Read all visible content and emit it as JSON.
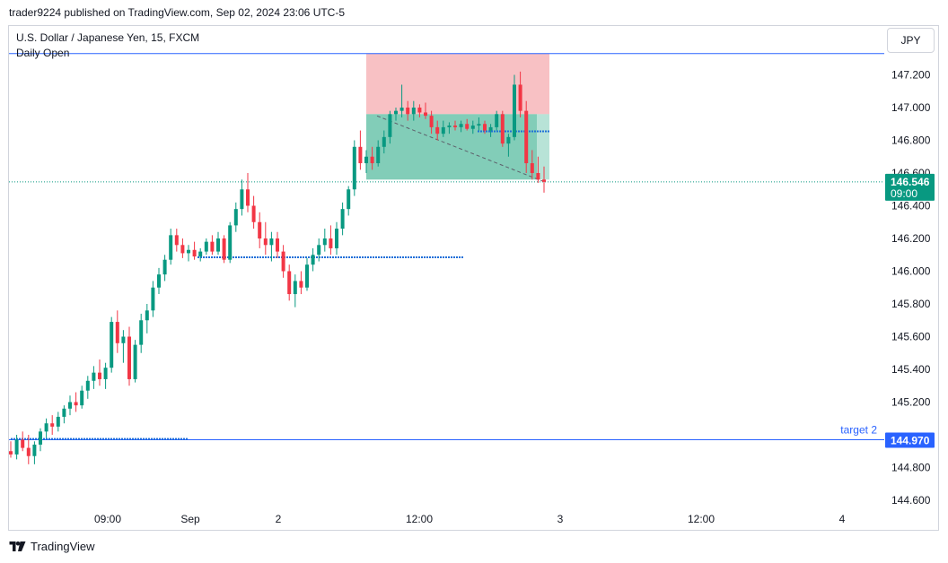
{
  "header": {
    "publisher_line": "trader9224 published on TradingView.com, Sep 02, 2024 23:06 UTC-5"
  },
  "symbol": {
    "title": "U.S. Dollar / Japanese Yen, 15, FXCM",
    "indicator": "Daily Open",
    "currency_button": "JPY"
  },
  "colors": {
    "up": "#089981",
    "down": "#f23645",
    "stop_zone": "#f7b6ba",
    "target_zone": "#4db89a",
    "hline": "#2962ff",
    "dotted_level": "#1e6fd8",
    "last_price_bg": "#089981",
    "target_label_bg": "#2962ff"
  },
  "price_axis": {
    "ticks": [
      "147.200",
      "147.000",
      "146.800",
      "146.600",
      "146.400",
      "146.200",
      "146.000",
      "145.800",
      "145.600",
      "145.400",
      "145.200",
      "144.800",
      "144.600"
    ]
  },
  "time_axis": {
    "labels": [
      "09:00",
      "Sep",
      "2",
      "12:00",
      "3",
      "12:00",
      "4"
    ]
  },
  "last_price": {
    "price": "146.546",
    "countdown": "09:00"
  },
  "target": {
    "label": "target 2",
    "price": "144.970"
  },
  "footer": {
    "brand": "TradingView"
  },
  "chart_data": {
    "type": "candlestick",
    "title": "U.S. Dollar / Japanese Yen, 15, FXCM",
    "ylim": [
      144.48,
      147.34
    ],
    "price_ticks": [
      147.2,
      147.0,
      146.8,
      146.6,
      146.4,
      146.2,
      146.0,
      145.8,
      145.6,
      145.4,
      145.2,
      144.8,
      144.6
    ],
    "last_price": 146.546,
    "daily_open_line": 147.33,
    "target_2": 144.97,
    "dotted_levels": [
      146.085,
      144.975,
      146.855
    ],
    "position": {
      "type": "short",
      "entry": 146.96,
      "stop": 147.33,
      "target": 146.56
    },
    "candles": [
      [
        144.9,
        144.96,
        144.86,
        144.88
      ],
      [
        144.88,
        145.0,
        144.85,
        144.97
      ],
      [
        144.97,
        145.02,
        144.9,
        144.92
      ],
      [
        144.92,
        145.0,
        144.82,
        144.87
      ],
      [
        144.87,
        144.96,
        144.82,
        144.94
      ],
      [
        144.94,
        145.04,
        144.9,
        145.02
      ],
      [
        145.02,
        145.1,
        144.98,
        145.07
      ],
      [
        145.07,
        145.12,
        145.0,
        145.05
      ],
      [
        145.05,
        145.14,
        145.02,
        145.11
      ],
      [
        145.11,
        145.18,
        145.07,
        145.16
      ],
      [
        145.16,
        145.24,
        145.12,
        145.2
      ],
      [
        145.2,
        145.26,
        145.14,
        145.18
      ],
      [
        145.18,
        145.3,
        145.16,
        145.27
      ],
      [
        145.27,
        145.36,
        145.22,
        145.33
      ],
      [
        145.33,
        145.42,
        145.28,
        145.38
      ],
      [
        145.38,
        145.46,
        145.3,
        145.34
      ],
      [
        145.34,
        145.44,
        145.28,
        145.41
      ],
      [
        145.41,
        145.72,
        145.38,
        145.69
      ],
      [
        145.69,
        145.76,
        145.5,
        145.56
      ],
      [
        145.56,
        145.64,
        145.44,
        145.6
      ],
      [
        145.6,
        145.66,
        145.3,
        145.34
      ],
      [
        145.34,
        145.58,
        145.32,
        145.55
      ],
      [
        145.55,
        145.74,
        145.5,
        145.7
      ],
      [
        145.7,
        145.8,
        145.62,
        145.76
      ],
      [
        145.76,
        145.94,
        145.72,
        145.9
      ],
      [
        145.9,
        146.02,
        145.86,
        145.98
      ],
      [
        145.98,
        146.1,
        145.94,
        146.07
      ],
      [
        146.07,
        146.26,
        146.04,
        146.22
      ],
      [
        146.22,
        146.26,
        146.12,
        146.16
      ],
      [
        146.16,
        146.2,
        146.08,
        146.11
      ],
      [
        146.11,
        146.16,
        146.06,
        146.13
      ],
      [
        146.13,
        146.18,
        146.07,
        146.09
      ],
      [
        146.09,
        146.14,
        146.06,
        146.12
      ],
      [
        146.12,
        146.2,
        146.1,
        146.18
      ],
      [
        146.18,
        146.22,
        146.1,
        146.12
      ],
      [
        146.12,
        146.24,
        146.1,
        146.2
      ],
      [
        146.2,
        146.22,
        146.05,
        146.07
      ],
      [
        146.07,
        146.3,
        146.05,
        146.28
      ],
      [
        146.28,
        146.42,
        146.24,
        146.38
      ],
      [
        146.38,
        146.56,
        146.34,
        146.5
      ],
      [
        146.5,
        146.6,
        146.36,
        146.4
      ],
      [
        146.4,
        146.46,
        146.26,
        146.3
      ],
      [
        146.3,
        146.36,
        146.14,
        146.2
      ],
      [
        146.2,
        146.3,
        146.1,
        146.16
      ],
      [
        146.16,
        146.24,
        146.06,
        146.2
      ],
      [
        146.2,
        146.24,
        146.08,
        146.12
      ],
      [
        146.12,
        146.16,
        145.96,
        146.0
      ],
      [
        146.0,
        146.04,
        145.82,
        145.86
      ],
      [
        145.86,
        145.98,
        145.78,
        145.94
      ],
      [
        145.94,
        146.0,
        145.86,
        145.9
      ],
      [
        145.9,
        146.08,
        145.88,
        146.04
      ],
      [
        146.04,
        146.14,
        146.0,
        146.1
      ],
      [
        146.1,
        146.2,
        146.06,
        146.16
      ],
      [
        146.16,
        146.26,
        146.12,
        146.2
      ],
      [
        146.2,
        146.28,
        146.1,
        146.14
      ],
      [
        146.14,
        146.3,
        146.1,
        146.26
      ],
      [
        146.26,
        146.42,
        146.22,
        146.38
      ],
      [
        146.38,
        146.52,
        146.34,
        146.5
      ],
      [
        146.5,
        146.8,
        146.46,
        146.76
      ],
      [
        146.76,
        146.86,
        146.62,
        146.66
      ],
      [
        146.66,
        146.74,
        146.6,
        146.7
      ],
      [
        146.7,
        146.76,
        146.62,
        146.66
      ],
      [
        146.66,
        146.8,
        146.64,
        146.76
      ],
      [
        146.76,
        146.86,
        146.72,
        146.82
      ],
      [
        146.82,
        146.98,
        146.78,
        146.96
      ],
      [
        146.96,
        147.0,
        146.92,
        146.98
      ],
      [
        146.98,
        147.14,
        146.94,
        147.0
      ],
      [
        147.0,
        147.04,
        146.92,
        146.96
      ],
      [
        146.96,
        147.04,
        146.92,
        147.0
      ],
      [
        147.0,
        147.02,
        146.94,
        146.97
      ],
      [
        146.97,
        147.03,
        146.93,
        146.95
      ],
      [
        146.95,
        146.98,
        146.84,
        146.88
      ],
      [
        146.88,
        146.92,
        146.8,
        146.84
      ],
      [
        146.84,
        146.92,
        146.82,
        146.88
      ],
      [
        146.88,
        146.91,
        146.84,
        146.89
      ],
      [
        146.89,
        146.92,
        146.86,
        146.88
      ],
      [
        146.88,
        146.92,
        146.85,
        146.9
      ],
      [
        146.9,
        146.93,
        146.86,
        146.87
      ],
      [
        146.87,
        146.92,
        146.84,
        146.89
      ],
      [
        146.89,
        146.94,
        146.86,
        146.9
      ],
      [
        146.9,
        146.92,
        146.84,
        146.86
      ],
      [
        146.86,
        146.9,
        146.82,
        146.88
      ],
      [
        146.88,
        146.98,
        146.86,
        146.96
      ],
      [
        146.96,
        146.98,
        146.76,
        146.78
      ],
      [
        146.78,
        146.84,
        146.7,
        146.82
      ],
      [
        146.82,
        147.2,
        146.8,
        147.14
      ],
      [
        147.14,
        147.22,
        146.94,
        146.98
      ],
      [
        146.98,
        147.04,
        146.6,
        146.66
      ],
      [
        146.66,
        146.74,
        146.56,
        146.6
      ],
      [
        146.6,
        146.7,
        146.54,
        146.56
      ],
      [
        146.56,
        146.64,
        146.48,
        146.546
      ]
    ]
  }
}
